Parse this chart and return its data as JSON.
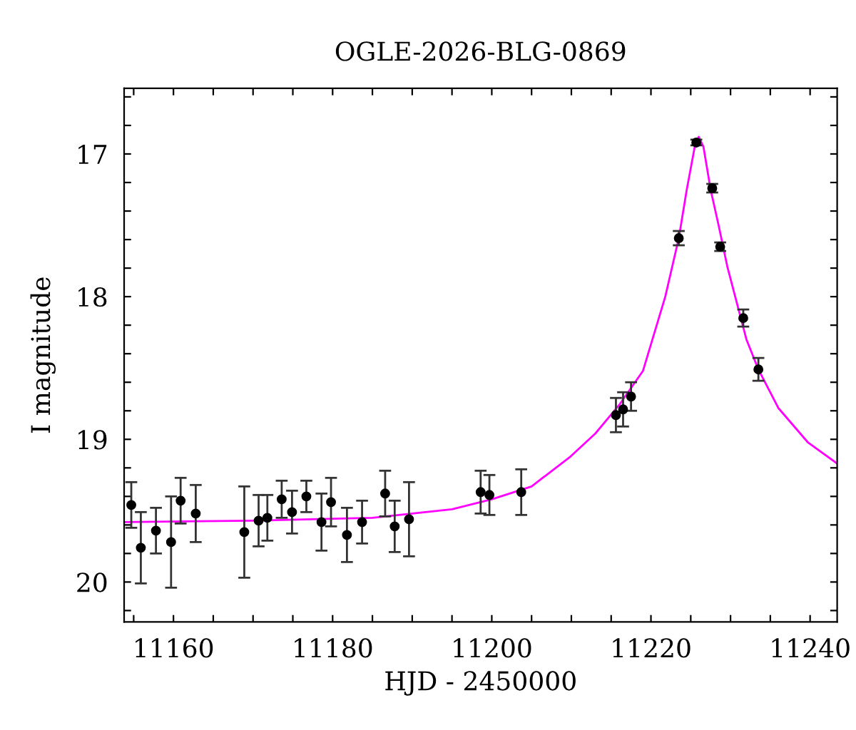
{
  "chart_data": {
    "type": "scatter",
    "title": "OGLE-2026-BLG-0869",
    "xlabel": "HJD - 2450000",
    "ylabel": "I magnitude",
    "xlim": [
      11153.8,
      11243.4
    ],
    "ylim": [
      20.28,
      16.54
    ],
    "xticks": [
      {
        "value": 11155,
        "label": null
      },
      11160,
      {
        "value": 11165,
        "label": null
      },
      {
        "value": 11170,
        "label": null
      },
      {
        "value": 11175,
        "label": null
      },
      11180,
      {
        "value": 11185,
        "label": null
      },
      {
        "value": 11190,
        "label": null
      },
      {
        "value": 11195,
        "label": null
      },
      11200,
      {
        "value": 11205,
        "label": null
      },
      {
        "value": 11210,
        "label": null
      },
      {
        "value": 11215,
        "label": null
      },
      11220,
      {
        "value": 11225,
        "label": null
      },
      {
        "value": 11230,
        "label": null
      },
      {
        "value": 11235,
        "label": null
      },
      11240
    ],
    "yticks": [
      {
        "value": 16.6,
        "label": null
      },
      {
        "value": 16.8,
        "label": null
      },
      17,
      {
        "value": 17.2,
        "label": null
      },
      {
        "value": 17.4,
        "label": null
      },
      {
        "value": 17.6,
        "label": null
      },
      {
        "value": 17.8,
        "label": null
      },
      18,
      {
        "value": 18.2,
        "label": null
      },
      {
        "value": 18.4,
        "label": null
      },
      {
        "value": 18.6,
        "label": null
      },
      {
        "value": 18.8,
        "label": null
      },
      19,
      {
        "value": 19.2,
        "label": null
      },
      {
        "value": 19.4,
        "label": null
      },
      {
        "value": 19.6,
        "label": null
      },
      {
        "value": 19.8,
        "label": null
      },
      20,
      {
        "value": 20.2,
        "label": null
      }
    ],
    "grid": false,
    "legend": false,
    "series": [
      {
        "type": "line",
        "color": "#ff00ff",
        "marker": "none",
        "line_style": "solid",
        "x": [
          11153.8,
          11170,
          11185,
          11195,
          11200,
          11205,
          11209.9,
          11213,
          11216,
          11219,
          11221.8,
          11223.5,
          11224.5,
          11225.5,
          11226,
          11226.6,
          11227.5,
          11228.5,
          11229.6,
          11232,
          11233.5,
          11236,
          11239.7,
          11243.4
        ],
        "values": [
          19.58,
          19.57,
          19.55,
          19.49,
          19.42,
          19.33,
          19.12,
          18.96,
          18.76,
          18.52,
          18.0,
          17.59,
          17.25,
          16.95,
          16.88,
          16.95,
          17.25,
          17.5,
          17.79,
          18.3,
          18.51,
          18.78,
          19.02,
          19.17
        ]
      },
      {
        "color": "#000000",
        "marker": "circle",
        "x": [
          11154.7,
          11155.9,
          11157.8,
          11159.7,
          11160.9,
          11162.8,
          11168.9,
          11170.7,
          11171.8,
          11173.6,
          11174.9,
          11176.7,
          11178.6,
          11179.8,
          11181.8,
          11183.7,
          11186.6,
          11187.8,
          11189.6,
          11198.6,
          11199.7,
          11203.7,
          11215.6,
          11216.5,
          11217.5,
          11223.5,
          11225.7,
          11227.7,
          11228.7,
          11231.6,
          11233.5
        ],
        "values": [
          19.46,
          19.76,
          19.64,
          19.72,
          19.43,
          19.52,
          19.65,
          19.57,
          19.55,
          19.42,
          19.51,
          19.4,
          19.58,
          19.44,
          19.67,
          19.58,
          19.38,
          19.61,
          19.56,
          19.37,
          19.39,
          19.37,
          18.83,
          18.79,
          18.7,
          17.59,
          16.92,
          17.24,
          17.65,
          18.15,
          18.51
        ],
        "errors": [
          0.16,
          0.25,
          0.16,
          0.32,
          0.16,
          0.2,
          0.32,
          0.18,
          0.16,
          0.13,
          0.15,
          0.11,
          0.2,
          0.17,
          0.19,
          0.15,
          0.16,
          0.18,
          0.26,
          0.15,
          0.14,
          0.16,
          0.12,
          0.12,
          0.1,
          0.05,
          0.02,
          0.03,
          0.03,
          0.06,
          0.08
        ]
      }
    ]
  }
}
